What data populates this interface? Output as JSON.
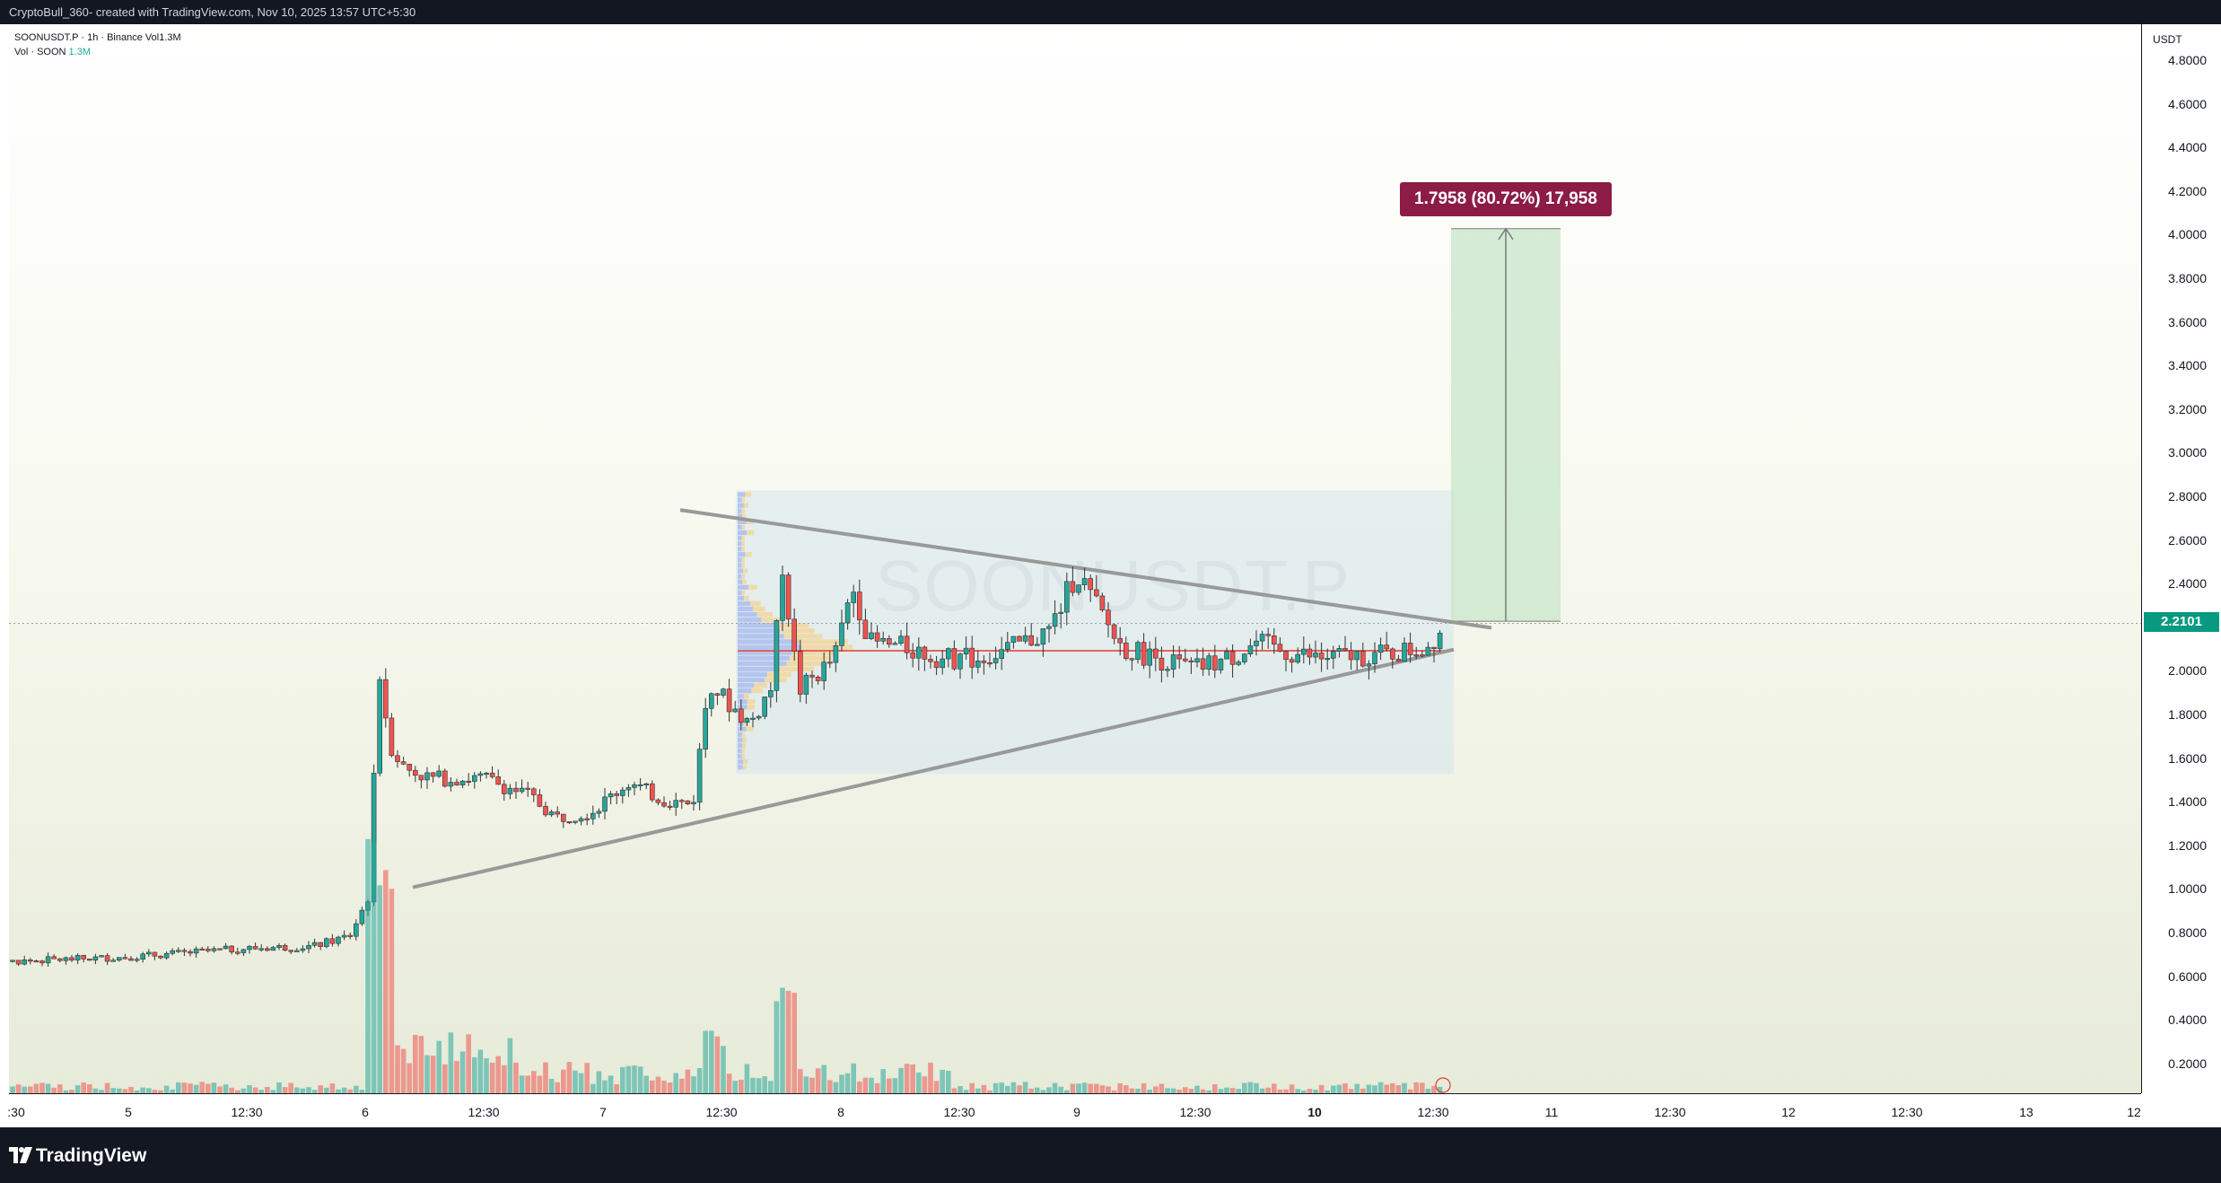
{
  "header": {
    "title": "CryptoBull_360- created with TradingView.com, Nov 10, 2025 13:57 UTC+5:30"
  },
  "legend": {
    "symbol_line": "SOONUSDT.P · 1h · Binance   Vol1.3M",
    "vol_label": "Vol · SOON",
    "vol_value": "1.3M"
  },
  "watermark": "SOONUSDT.P",
  "measure": {
    "label": "1.7958 (80.72%) 17,958"
  },
  "price_axis": {
    "unit": "USDT",
    "ticks": [
      "4.8000",
      "4.6000",
      "4.4000",
      "4.2000",
      "4.0000",
      "3.8000",
      "3.6000",
      "3.4000",
      "3.2000",
      "3.0000",
      "2.8000",
      "2.6000",
      "2.4000",
      "2.2000",
      "2.0000",
      "1.8000",
      "1.6000",
      "1.4000",
      "1.2000",
      "1.0000",
      "0.8000",
      "0.6000",
      "0.4000",
      "0.2000"
    ],
    "current": "2.2101"
  },
  "time_axis": {
    "ticks": [
      ":30",
      "5",
      "12:30",
      "6",
      "12:30",
      "7",
      "12:30",
      "8",
      "12:30",
      "9",
      "12:30",
      "10",
      "12:30",
      "11",
      "12:30",
      "12",
      "12:30",
      "13",
      "12"
    ]
  },
  "footer": {
    "brand": "TradingView"
  },
  "colors": {
    "up": "#26a69a",
    "down": "#ef5350",
    "current_price": "#089981",
    "measure_label": "#8c1c46",
    "target_box": "#c8e6c9",
    "range_box": "#cfe3f0",
    "trendline": "#999999"
  }
}
